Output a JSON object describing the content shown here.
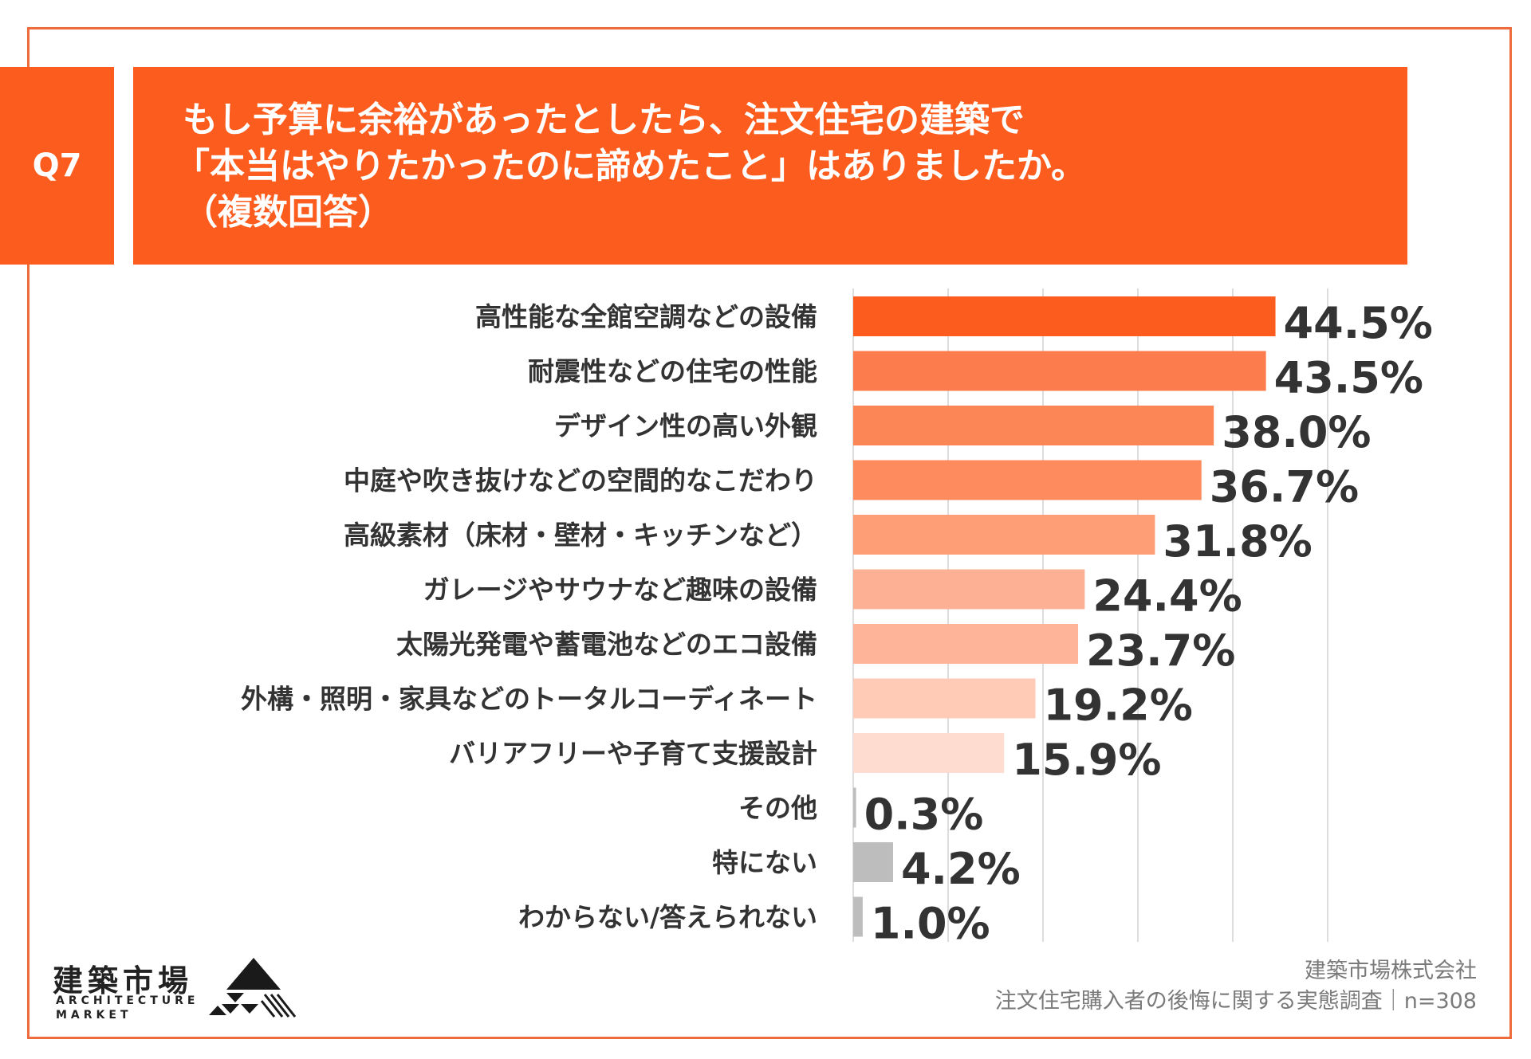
{
  "header": {
    "question_tag": "Q7",
    "title_lines": [
      "もし予算に余裕があったとしたら、注文住宅の建築で",
      "「本当はやりたかったのに諦めたこと」はありましたか。",
      "（複数回答）"
    ]
  },
  "colors": {
    "accent": "#fc5c1d",
    "frame": "#ee6b3b",
    "gray_bar": "#bdbdbd",
    "text": "#333333",
    "grid": "#dddddd"
  },
  "chart_data": {
    "type": "bar",
    "orientation": "horizontal",
    "categories": [
      "高性能な全館空調などの設備",
      "耐震性などの住宅の性能",
      "デザイン性の高い外観",
      "中庭や吹き抜けなどの空間的なこだわり",
      "高級素材（床材・壁材・キッチンなど）",
      "ガレージやサウナなど趣味の設備",
      "太陽光発電や蓄電池などのエコ設備",
      "外構・照明・家具などのトータルコーディネート",
      "バリアフリーや子育て支援設計",
      "その他",
      "特にない",
      "わからない/答えられない"
    ],
    "values": [
      44.5,
      43.5,
      38.0,
      36.7,
      31.8,
      24.4,
      23.7,
      19.2,
      15.9,
      0.3,
      4.2,
      1.0
    ],
    "value_labels": [
      "44.5%",
      "43.5%",
      "38.0%",
      "36.7%",
      "31.8%",
      "24.4%",
      "23.7%",
      "19.2%",
      "15.9%",
      "0.3%",
      "4.2%",
      "1.0%"
    ],
    "bar_colors": [
      "#fc5c1d",
      "#fd7c4d",
      "#fd8657",
      "#fd8b5d",
      "#fd9e77",
      "#feb094",
      "#feb499",
      "#ffcbb7",
      "#ffdcd0",
      "#bdbdbd",
      "#bdbdbd",
      "#bdbdbd"
    ],
    "xlim": [
      0,
      50
    ],
    "grid": true,
    "unit": "%"
  },
  "footer": {
    "logo_kanji": "建築市場",
    "logo_en_line1": "ARCHITECTURE",
    "logo_en_line2": "MARKET",
    "source_company": "建築市場株式会社",
    "source_survey": "注文住宅購入者の後悔に関する実態調査｜n=308"
  }
}
